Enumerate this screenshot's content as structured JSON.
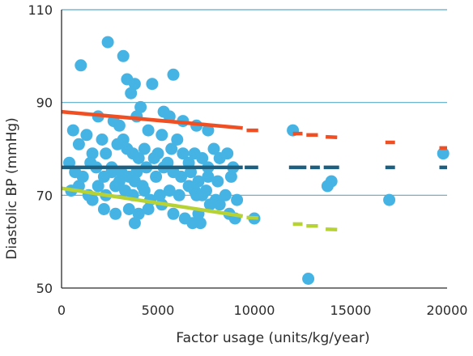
{
  "chart_data": {
    "type": "scatter",
    "xlabel": "Factor usage (units/kg/year)",
    "ylabel": "Diastolic BP (mmHg)",
    "xlim": [
      0,
      20000
    ],
    "ylim": [
      50,
      110
    ],
    "xticks": [
      "0",
      "5000",
      "10000",
      "15000",
      "20000"
    ],
    "yticks": [
      "50",
      "70",
      "90",
      "110"
    ],
    "grid": "horizontal",
    "colors": {
      "points": "#45b4e5",
      "upper_line": "#f04e23",
      "middle_line": "#1e5f80",
      "lower_line": "#b6d234",
      "grid": "#5aa9c6",
      "axis": "#2b2b2b"
    },
    "series": [
      {
        "points": [
          [
            2400,
            103
          ],
          [
            1000,
            98
          ],
          [
            3200,
            100
          ],
          [
            3400,
            95
          ],
          [
            3800,
            94
          ],
          [
            4700,
            94
          ],
          [
            5800,
            96
          ],
          [
            3600,
            92
          ],
          [
            4100,
            89
          ],
          [
            3900,
            87
          ],
          [
            5300,
            88
          ],
          [
            5600,
            87
          ],
          [
            6300,
            86
          ],
          [
            7000,
            85
          ],
          [
            7600,
            84
          ],
          [
            1900,
            87
          ],
          [
            2700,
            86
          ],
          [
            3000,
            85
          ],
          [
            4500,
            84
          ],
          [
            5200,
            83
          ],
          [
            600,
            84
          ],
          [
            900,
            81
          ],
          [
            1300,
            83
          ],
          [
            1600,
            79
          ],
          [
            2100,
            82
          ],
          [
            2300,
            79
          ],
          [
            2900,
            81
          ],
          [
            3200,
            82
          ],
          [
            3400,
            80
          ],
          [
            3700,
            79
          ],
          [
            4000,
            78
          ],
          [
            4300,
            80
          ],
          [
            4800,
            78
          ],
          [
            5000,
            79
          ],
          [
            5500,
            77
          ],
          [
            5700,
            80
          ],
          [
            6000,
            82
          ],
          [
            6300,
            79
          ],
          [
            6600,
            77
          ],
          [
            6900,
            79
          ],
          [
            7300,
            78
          ],
          [
            7600,
            76
          ],
          [
            7900,
            80
          ],
          [
            8200,
            78
          ],
          [
            8600,
            79
          ],
          [
            8900,
            76
          ],
          [
            400,
            77
          ],
          [
            700,
            75
          ],
          [
            1100,
            74
          ],
          [
            1500,
            77
          ],
          [
            1800,
            76
          ],
          [
            2200,
            74
          ],
          [
            2600,
            76
          ],
          [
            3100,
            75
          ],
          [
            3500,
            74
          ],
          [
            3900,
            75
          ],
          [
            4400,
            76
          ],
          [
            4900,
            74
          ],
          [
            5300,
            76
          ],
          [
            5800,
            75
          ],
          [
            6200,
            74
          ],
          [
            6700,
            75
          ],
          [
            7100,
            73
          ],
          [
            7600,
            74
          ],
          [
            8100,
            73
          ],
          [
            8800,
            74
          ],
          [
            500,
            71
          ],
          [
            900,
            72
          ],
          [
            1400,
            70
          ],
          [
            1900,
            72
          ],
          [
            2300,
            70
          ],
          [
            2800,
            72
          ],
          [
            3300,
            71
          ],
          [
            3700,
            70
          ],
          [
            4200,
            72
          ],
          [
            4600,
            69
          ],
          [
            5100,
            70
          ],
          [
            5600,
            71
          ],
          [
            6100,
            70
          ],
          [
            6600,
            72
          ],
          [
            7000,
            70
          ],
          [
            7500,
            71
          ],
          [
            8000,
            69
          ],
          [
            8500,
            70
          ],
          [
            9100,
            69
          ],
          [
            1600,
            69
          ],
          [
            2200,
            67
          ],
          [
            2800,
            66
          ],
          [
            3500,
            67
          ],
          [
            4000,
            66
          ],
          [
            4500,
            67
          ],
          [
            5200,
            68
          ],
          [
            5800,
            66
          ],
          [
            6400,
            65
          ],
          [
            7100,
            66
          ],
          [
            7700,
            68
          ],
          [
            8200,
            68
          ],
          [
            8700,
            66
          ],
          [
            2600,
            75
          ],
          [
            3000,
            73
          ],
          [
            3800,
            73
          ],
          [
            4300,
            71
          ],
          [
            6900,
            71
          ],
          [
            7300,
            70
          ],
          [
            6800,
            64
          ],
          [
            7200,
            64
          ],
          [
            3800,
            64
          ],
          [
            9000,
            65
          ],
          [
            10000,
            65
          ],
          [
            12000,
            84
          ],
          [
            13800,
            72
          ],
          [
            14000,
            73
          ],
          [
            12800,
            52
          ],
          [
            17000,
            69
          ],
          [
            19800,
            79
          ]
        ]
      }
    ],
    "lines": [
      {
        "segments": [
          [
            0,
            88,
            9400,
            84.5
          ],
          [
            9600,
            84,
            10200,
            84
          ],
          [
            12000,
            83.3,
            12500,
            83.3
          ],
          [
            12700,
            83,
            13300,
            83
          ],
          [
            13700,
            82.6,
            14300,
            82.5
          ],
          [
            16800,
            81.4,
            17300,
            81.4
          ],
          [
            19600,
            80.2,
            20000,
            80.2
          ]
        ]
      },
      {
        "segments": [
          [
            0,
            76,
            9400,
            76
          ],
          [
            9500,
            76,
            10200,
            76
          ],
          [
            11800,
            76,
            12700,
            76
          ],
          [
            12900,
            76,
            13400,
            76
          ],
          [
            13600,
            76,
            14400,
            76
          ],
          [
            16800,
            76,
            17300,
            76
          ],
          [
            19600,
            76,
            20000,
            76
          ]
        ]
      },
      {
        "segments": [
          [
            0,
            71.5,
            9400,
            65.5
          ],
          [
            9600,
            65.2,
            10200,
            65.1
          ],
          [
            12000,
            63.8,
            12500,
            63.8
          ],
          [
            12700,
            63.4,
            13300,
            63.4
          ],
          [
            13700,
            62.7,
            14300,
            62.6
          ]
        ]
      }
    ]
  }
}
